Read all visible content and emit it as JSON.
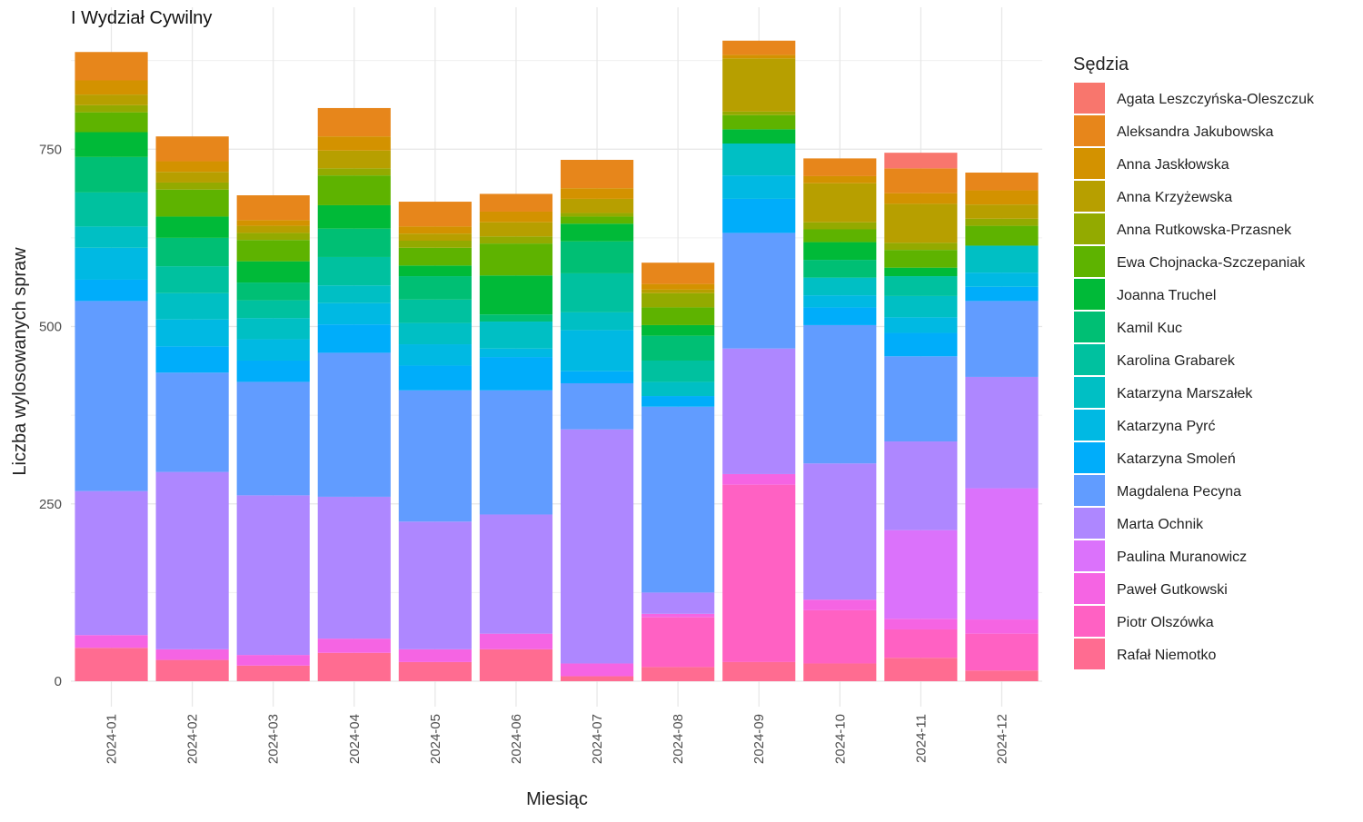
{
  "chart_data": {
    "type": "bar",
    "stacked": true,
    "title": "I Wydział Cywilny",
    "xlabel": "Miesiąc",
    "ylabel": "Liczba wylosowanych spraw",
    "ylim": [
      0,
      900
    ],
    "yticks": [
      0,
      250,
      500,
      750
    ],
    "grid": true,
    "legend_title": "Sędzia",
    "legend_position": "right",
    "categories": [
      "2024-01",
      "2024-02",
      "2024-03",
      "2024-04",
      "2024-05",
      "2024-06",
      "2024-07",
      "2024-08",
      "2024-09",
      "2024-10",
      "2024-11",
      "2024-12"
    ],
    "series": [
      {
        "name": "Agata Leszczyńska-Oleszczuk",
        "color": "#F8766D",
        "values": [
          0,
          0,
          0,
          0,
          0,
          0,
          0,
          0,
          0,
          0,
          22,
          0
        ]
      },
      {
        "name": "Aleksandra Jakubowska",
        "color": "#E7861B",
        "values": [
          40,
          35,
          35,
          40,
          35,
          25,
          40,
          30,
          20,
          25,
          35,
          25
        ]
      },
      {
        "name": "Anna Jaskłowska",
        "color": "#D39200",
        "values": [
          20,
          15,
          8,
          20,
          10,
          15,
          15,
          8,
          5,
          10,
          15,
          20
        ]
      },
      {
        "name": "Anna Krzyżewska",
        "color": "#B79F00",
        "values": [
          15,
          15,
          10,
          25,
          10,
          20,
          20,
          5,
          75,
          55,
          55,
          20
        ]
      },
      {
        "name": "Anna Rutkowska-Przasnek",
        "color": "#93AA00",
        "values": [
          10,
          10,
          10,
          10,
          10,
          10,
          5,
          20,
          5,
          10,
          10,
          10
        ]
      },
      {
        "name": "Ewa Chojnacka-Szczepaniak",
        "color": "#5EB300",
        "values": [
          28,
          38,
          30,
          42,
          25,
          45,
          10,
          25,
          20,
          18,
          25,
          28
        ]
      },
      {
        "name": "Joanna Truchel",
        "color": "#00BA38",
        "values": [
          35,
          30,
          30,
          33,
          15,
          55,
          25,
          15,
          20,
          25,
          12,
          0
        ]
      },
      {
        "name": "Kamil Kuc",
        "color": "#00BF74",
        "values": [
          50,
          40,
          25,
          40,
          33,
          10,
          45,
          35,
          0,
          25,
          0,
          0
        ]
      },
      {
        "name": "Karolina Grabarek",
        "color": "#00C19F",
        "values": [
          48,
          38,
          25,
          40,
          33,
          0,
          55,
          30,
          0,
          0,
          28,
          0
        ]
      },
      {
        "name": "Katarzyna Marszałek",
        "color": "#00BFC4",
        "values": [
          30,
          37,
          30,
          25,
          30,
          38,
          25,
          20,
          45,
          25,
          30,
          38
        ]
      },
      {
        "name": "Katarzyna Pyrć",
        "color": "#00B9E3",
        "values": [
          45,
          38,
          30,
          30,
          30,
          12,
          58,
          0,
          33,
          17,
          22,
          20
        ]
      },
      {
        "name": "Katarzyna Smoleń",
        "color": "#00ADFA",
        "values": [
          30,
          37,
          30,
          40,
          35,
          47,
          17,
          15,
          48,
          25,
          33,
          20
        ]
      },
      {
        "name": "Magdalena Pecyna",
        "color": "#619CFF",
        "values": [
          268,
          140,
          160,
          203,
          185,
          175,
          65,
          262,
          163,
          195,
          120,
          107
        ]
      },
      {
        "name": "Marta Ochnik",
        "color": "#AE87FF",
        "values": [
          203,
          250,
          225,
          200,
          180,
          168,
          330,
          30,
          177,
          192,
          125,
          157
        ]
      },
      {
        "name": "Paulina Muranowicz",
        "color": "#DB72FB",
        "values": [
          0,
          0,
          0,
          0,
          0,
          0,
          0,
          0,
          0,
          0,
          125,
          185
        ]
      },
      {
        "name": "Paweł Gutkowski",
        "color": "#F564E3",
        "values": [
          18,
          15,
          15,
          20,
          18,
          22,
          18,
          5,
          15,
          15,
          15,
          20
        ]
      },
      {
        "name": "Piotr Olszówka",
        "color": "#FF61C3",
        "values": [
          0,
          0,
          0,
          0,
          0,
          0,
          0,
          70,
          250,
          75,
          40,
          52
        ]
      },
      {
        "name": "Rafał Niemotko",
        "color": "#FF6C91",
        "values": [
          47,
          30,
          22,
          40,
          27,
          45,
          7,
          20,
          27,
          25,
          33,
          15
        ]
      }
    ]
  }
}
